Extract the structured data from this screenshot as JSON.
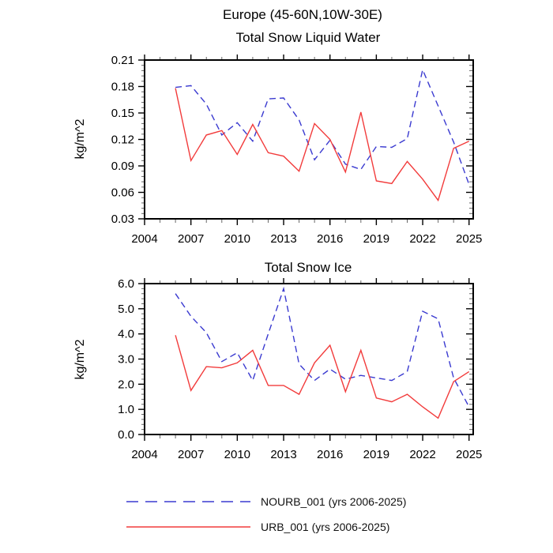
{
  "page_title": "Europe (45-60N,10W-30E)",
  "legend": {
    "items": [
      {
        "label": "NOURB_001 (yrs 2006-2025)",
        "color": "#3a3ad0",
        "style": "dashed"
      },
      {
        "label": "URB_001 (yrs 2006-2025)",
        "color": "#f23b3b",
        "style": "solid"
      }
    ]
  },
  "colors": {
    "axis": "#000000",
    "minor_tick": "#666666",
    "nourb_line": "#3a3ad0",
    "urb_line": "#f23b3b"
  },
  "chart_data": [
    {
      "type": "line",
      "title": "Total Snow Liquid Water",
      "ylabel": "kg/m^2",
      "xlabel": "",
      "xlim": [
        2004,
        2025.27
      ],
      "ylim": [
        0.03,
        0.21
      ],
      "xticks": [
        2004,
        2007,
        2010,
        2013,
        2016,
        2019,
        2022,
        2025
      ],
      "xtick_labels": [
        "2004",
        "2007",
        "2010",
        "2013",
        "2016",
        "2019",
        "2022",
        "2025"
      ],
      "xminor_step": 1,
      "yticks": [
        0.03,
        0.06,
        0.09,
        0.12,
        0.15,
        0.18,
        0.21
      ],
      "ytick_labels": [
        "0.03",
        "0.06",
        "0.09",
        "0.12",
        "0.15",
        "0.18",
        "0.21"
      ],
      "yminor_step": 0.006,
      "grid": false,
      "x": [
        2006,
        2007,
        2008,
        2009,
        2010,
        2011,
        2012,
        2013,
        2014,
        2015,
        2016,
        2017,
        2018,
        2019,
        2020,
        2021,
        2022,
        2023,
        2024,
        2025
      ],
      "series": [
        {
          "name": "NOURB_001",
          "dash": true,
          "values": [
            0.179,
            0.181,
            0.16,
            0.125,
            0.139,
            0.118,
            0.166,
            0.167,
            0.142,
            0.097,
            0.119,
            0.092,
            0.086,
            0.112,
            0.111,
            0.121,
            0.199,
            0.158,
            0.117,
            0.069
          ]
        },
        {
          "name": "URB_001",
          "dash": false,
          "values": [
            0.178,
            0.096,
            0.125,
            0.13,
            0.103,
            0.137,
            0.105,
            0.101,
            0.084,
            0.138,
            0.12,
            0.083,
            0.151,
            0.073,
            0.07,
            0.095,
            0.075,
            0.051,
            0.11,
            0.118
          ]
        }
      ]
    },
    {
      "type": "line",
      "title": "Total Snow Ice",
      "ylabel": "kg/m^2",
      "xlabel": "",
      "xlim": [
        2004,
        2025.27
      ],
      "ylim": [
        0.0,
        6.0
      ],
      "xticks": [
        2004,
        2007,
        2010,
        2013,
        2016,
        2019,
        2022,
        2025
      ],
      "xtick_labels": [
        "2004",
        "2007",
        "2010",
        "2013",
        "2016",
        "2019",
        "2022",
        "2025"
      ],
      "xminor_step": 1,
      "yticks": [
        0.0,
        1.0,
        2.0,
        3.0,
        4.0,
        5.0,
        6.0
      ],
      "ytick_labels": [
        "0.0",
        "1.0",
        "2.0",
        "3.0",
        "4.0",
        "5.0",
        "6.0"
      ],
      "yminor_step": 0.2,
      "grid": false,
      "x": [
        2006,
        2007,
        2008,
        2009,
        2010,
        2011,
        2012,
        2013,
        2014,
        2015,
        2016,
        2017,
        2018,
        2019,
        2020,
        2021,
        2022,
        2023,
        2024,
        2025
      ],
      "series": [
        {
          "name": "NOURB_001",
          "dash": true,
          "values": [
            5.6,
            4.7,
            4.05,
            2.9,
            3.25,
            2.15,
            4.0,
            5.8,
            2.8,
            2.15,
            2.6,
            2.2,
            2.35,
            2.25,
            2.15,
            2.5,
            4.9,
            4.6,
            2.25,
            1.1
          ]
        },
        {
          "name": "URB_001",
          "dash": false,
          "values": [
            3.95,
            1.75,
            2.7,
            2.65,
            2.85,
            3.35,
            1.95,
            1.95,
            1.6,
            2.85,
            3.55,
            1.7,
            3.35,
            1.45,
            1.3,
            1.6,
            1.1,
            0.65,
            2.1,
            2.5
          ]
        }
      ]
    }
  ]
}
